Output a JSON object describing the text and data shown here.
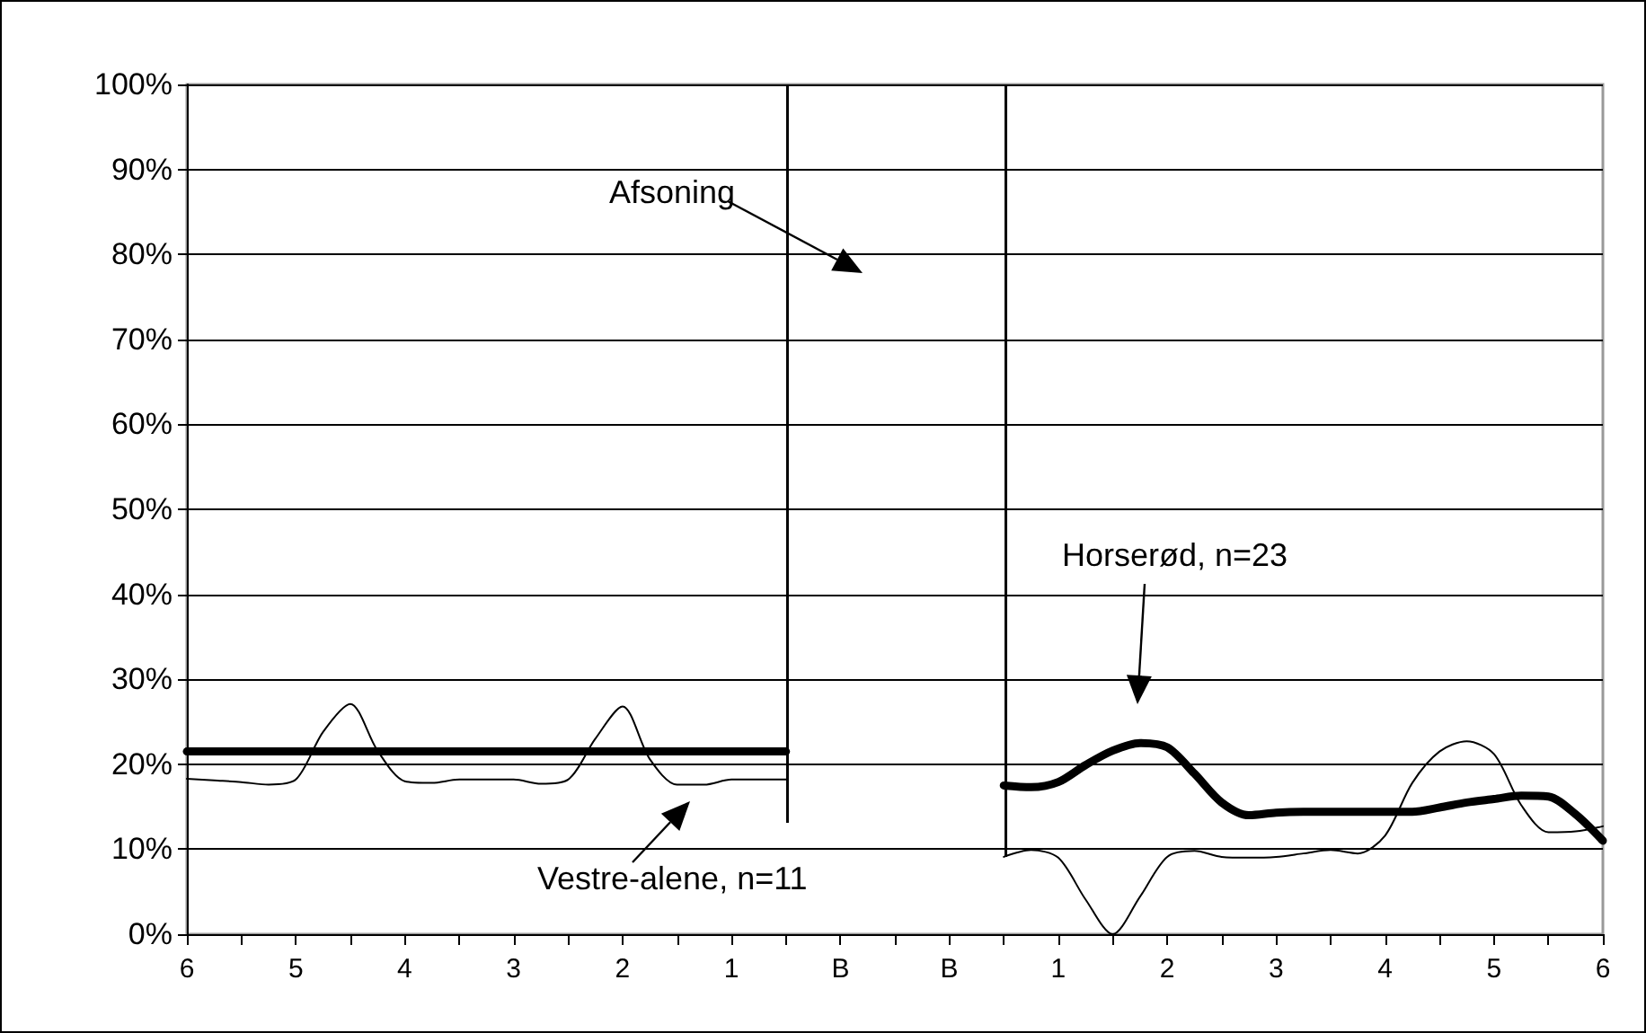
{
  "chart_data": {
    "type": "line",
    "categories": [
      "6",
      null,
      null,
      null,
      "5",
      null,
      null,
      null,
      "4",
      null,
      null,
      null,
      "3",
      null,
      null,
      null,
      "2",
      null,
      null,
      null,
      "1",
      null,
      null,
      null,
      "B",
      null,
      null,
      null,
      "B",
      null,
      null,
      null,
      "1",
      null,
      null,
      null,
      "2",
      null,
      null,
      null,
      "3",
      null,
      null,
      null,
      "4",
      null,
      null,
      null,
      "5",
      null,
      null,
      null,
      "6"
    ],
    "ylim": [
      0,
      100
    ],
    "yticks": [
      {
        "value": 0,
        "label": "0%"
      },
      {
        "value": 10,
        "label": "10%"
      },
      {
        "value": 20,
        "label": "20%"
      },
      {
        "value": 30,
        "label": "30%"
      },
      {
        "value": 40,
        "label": "40%"
      },
      {
        "value": 50,
        "label": "50%"
      },
      {
        "value": 60,
        "label": "60%"
      },
      {
        "value": 70,
        "label": "70%"
      },
      {
        "value": 80,
        "label": "80%"
      },
      {
        "value": 90,
        "label": "90%"
      },
      {
        "value": 100,
        "label": "100%"
      }
    ],
    "grid": "y",
    "marker": "none",
    "line_style": "solid",
    "series": [
      {
        "color": "#000000",
        "values": [
          21.5,
          21.5,
          21.5,
          21.5,
          21.5,
          21.5,
          21.5,
          21.5,
          21.5,
          21.5,
          21.5,
          21.5,
          21.5,
          21.5,
          21.5,
          21.5,
          21.5,
          21.5,
          21.5,
          21.5,
          21.5,
          21.5,
          21.5,
          null,
          null,
          null,
          null,
          null,
          null,
          null,
          null,
          null,
          null,
          null,
          null,
          null,
          null,
          null,
          null,
          null,
          null,
          null,
          null,
          null,
          null,
          null,
          null,
          null,
          null,
          null,
          null,
          null,
          null
        ]
      },
      {
        "color": "#000000",
        "values": [
          18.3,
          18.1,
          17.9,
          17.6,
          18.2,
          23.8,
          27.1,
          21.6,
          18.0,
          17.8,
          18.2,
          18.2,
          18.2,
          17.7,
          18.2,
          23,
          26.8,
          20.6,
          17.6,
          17.6,
          18.2,
          18.2,
          18.2,
          null,
          null,
          null,
          null,
          null,
          null,
          null,
          null,
          null,
          null,
          null,
          null,
          null,
          null,
          null,
          null,
          null,
          null,
          null,
          null,
          null,
          null,
          null,
          null,
          null,
          null,
          null,
          null,
          null,
          null
        ]
      },
      {
        "color": "#000000",
        "values": [
          null,
          null,
          null,
          null,
          null,
          null,
          null,
          null,
          null,
          null,
          null,
          null,
          null,
          null,
          null,
          null,
          null,
          null,
          null,
          null,
          null,
          null,
          null,
          null,
          null,
          null,
          null,
          null,
          null,
          null,
          17.5,
          17.3,
          17.9,
          19.9,
          21.6,
          22.5,
          22.0,
          18.9,
          15.5,
          14.0,
          14.3,
          14.4,
          14.4,
          14.4,
          14.4,
          14.4,
          14.9,
          15.5,
          15.9,
          16.3,
          16.2,
          14.1,
          11.0
        ]
      },
      {
        "color": "#000000",
        "values": [
          null,
          null,
          null,
          null,
          null,
          null,
          null,
          null,
          null,
          null,
          null,
          null,
          null,
          null,
          null,
          null,
          null,
          null,
          null,
          null,
          null,
          null,
          null,
          null,
          null,
          null,
          null,
          null,
          null,
          null,
          9.1,
          9.9,
          9.0,
          4.1,
          0,
          4.4,
          9.1,
          9.8,
          9.1,
          9.0,
          9.1,
          9.5,
          9.9,
          9.5,
          11.6,
          17.8,
          21.5,
          22.7,
          21.2,
          15.2,
          12.0,
          12.1,
          12.7
        ]
      }
    ],
    "annotations": [
      "Afsoning",
      "Horserød, n=23",
      "Vestre-alene, n=11"
    ]
  }
}
